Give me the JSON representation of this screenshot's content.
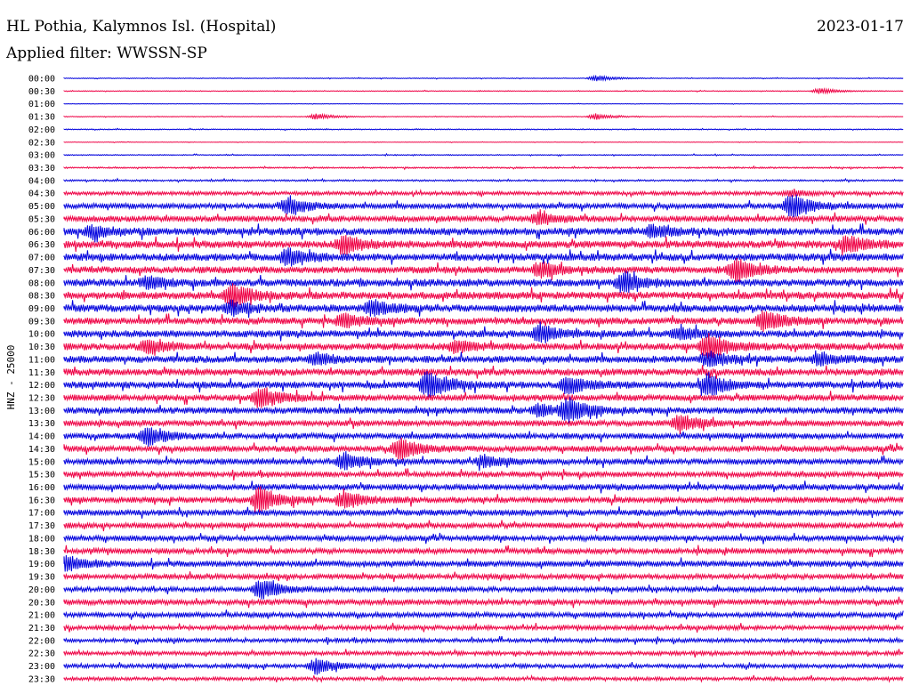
{
  "header": {
    "station": "HL Pothia, Kalymnos Isl. (Hospital)",
    "date": "2023-01-17",
    "filter": "Applied filter: WWSSN-SP"
  },
  "chart_data": {
    "type": "line",
    "title": "HL Pothia, Kalymnos Isl. (Hospital)",
    "ylabel": "HNZ - 25000",
    "colors": [
      "#0000dd",
      "#ee0044"
    ],
    "tick_labels": [
      "00:00",
      "00:30",
      "01:00",
      "01:30",
      "02:00",
      "02:30",
      "03:00",
      "03:30",
      "04:00",
      "04:30",
      "05:00",
      "05:30",
      "06:00",
      "06:30",
      "07:00",
      "07:30",
      "08:00",
      "08:30",
      "09:00",
      "09:30",
      "10:00",
      "10:30",
      "11:00",
      "11:30",
      "12:00",
      "12:30",
      "13:00",
      "13:30",
      "14:00",
      "14:30",
      "15:00",
      "15:30",
      "16:00",
      "16:30",
      "17:00",
      "17:30",
      "18:00",
      "18:30",
      "19:00",
      "19:30",
      "20:00",
      "20:30",
      "21:00",
      "21:30",
      "22:00",
      "22:30",
      "23:00",
      "23:30"
    ],
    "noise_level": [
      0.3,
      0.3,
      0.2,
      0.3,
      0.4,
      0.2,
      0.4,
      0.6,
      0.7,
      1.5,
      2.2,
      2.4,
      3.0,
      3.0,
      3.0,
      2.8,
      3.0,
      3.0,
      3.0,
      2.8,
      2.8,
      2.8,
      2.8,
      2.8,
      2.8,
      2.6,
      2.6,
      2.4,
      2.4,
      2.4,
      2.4,
      2.2,
      2.4,
      2.4,
      2.4,
      2.2,
      2.2,
      2.2,
      2.4,
      2.0,
      2.0,
      2.2,
      2.0,
      1.8,
      1.6,
      1.6,
      1.6,
      1.4
    ],
    "events": [
      {
        "trace": 0,
        "minute": 19,
        "amp": 3
      },
      {
        "trace": 1,
        "minute": 27,
        "amp": 3
      },
      {
        "trace": 3,
        "minute": 9,
        "amp": 3
      },
      {
        "trace": 3,
        "minute": 19,
        "amp": 3
      },
      {
        "trace": 9,
        "minute": 26,
        "amp": 3
      },
      {
        "trace": 10,
        "minute": 8,
        "amp": 9
      },
      {
        "trace": 10,
        "minute": 26,
        "amp": 14
      },
      {
        "trace": 11,
        "minute": 17,
        "amp": 6
      },
      {
        "trace": 12,
        "minute": 1,
        "amp": 6
      },
      {
        "trace": 12,
        "minute": 21,
        "amp": 6
      },
      {
        "trace": 13,
        "minute": 10,
        "amp": 9
      },
      {
        "trace": 13,
        "minute": 28,
        "amp": 8
      },
      {
        "trace": 14,
        "minute": 8,
        "amp": 8
      },
      {
        "trace": 15,
        "minute": 17,
        "amp": 8
      },
      {
        "trace": 15,
        "minute": 24,
        "amp": 12
      },
      {
        "trace": 16,
        "minute": 3,
        "amp": 6
      },
      {
        "trace": 16,
        "minute": 20,
        "amp": 11
      },
      {
        "trace": 17,
        "minute": 6,
        "amp": 12
      },
      {
        "trace": 18,
        "minute": 6,
        "amp": 7
      },
      {
        "trace": 18,
        "minute": 11,
        "amp": 8
      },
      {
        "trace": 19,
        "minute": 10,
        "amp": 7
      },
      {
        "trace": 19,
        "minute": 25,
        "amp": 12
      },
      {
        "trace": 20,
        "minute": 17,
        "amp": 9
      },
      {
        "trace": 20,
        "minute": 22,
        "amp": 6
      },
      {
        "trace": 21,
        "minute": 3,
        "amp": 7
      },
      {
        "trace": 21,
        "minute": 14,
        "amp": 6
      },
      {
        "trace": 21,
        "minute": 23,
        "amp": 14
      },
      {
        "trace": 22,
        "minute": 9,
        "amp": 6
      },
      {
        "trace": 22,
        "minute": 23,
        "amp": 9
      },
      {
        "trace": 22,
        "minute": 27,
        "amp": 6
      },
      {
        "trace": 24,
        "minute": 13,
        "amp": 14
      },
      {
        "trace": 24,
        "minute": 18,
        "amp": 9
      },
      {
        "trace": 24,
        "minute": 23,
        "amp": 12
      },
      {
        "trace": 25,
        "minute": 7,
        "amp": 11
      },
      {
        "trace": 26,
        "minute": 18,
        "amp": 12
      },
      {
        "trace": 26,
        "minute": 17,
        "amp": 6
      },
      {
        "trace": 27,
        "minute": 22,
        "amp": 9
      },
      {
        "trace": 28,
        "minute": 3,
        "amp": 11
      },
      {
        "trace": 29,
        "minute": 12,
        "amp": 11
      },
      {
        "trace": 30,
        "minute": 10,
        "amp": 9
      },
      {
        "trace": 30,
        "minute": 15,
        "amp": 6
      },
      {
        "trace": 33,
        "minute": 7,
        "amp": 13
      },
      {
        "trace": 33,
        "minute": 10,
        "amp": 9
      },
      {
        "trace": 38,
        "minute": 0,
        "amp": 9
      },
      {
        "trace": 40,
        "minute": 7,
        "amp": 11
      },
      {
        "trace": 46,
        "minute": 9,
        "amp": 8
      }
    ]
  }
}
